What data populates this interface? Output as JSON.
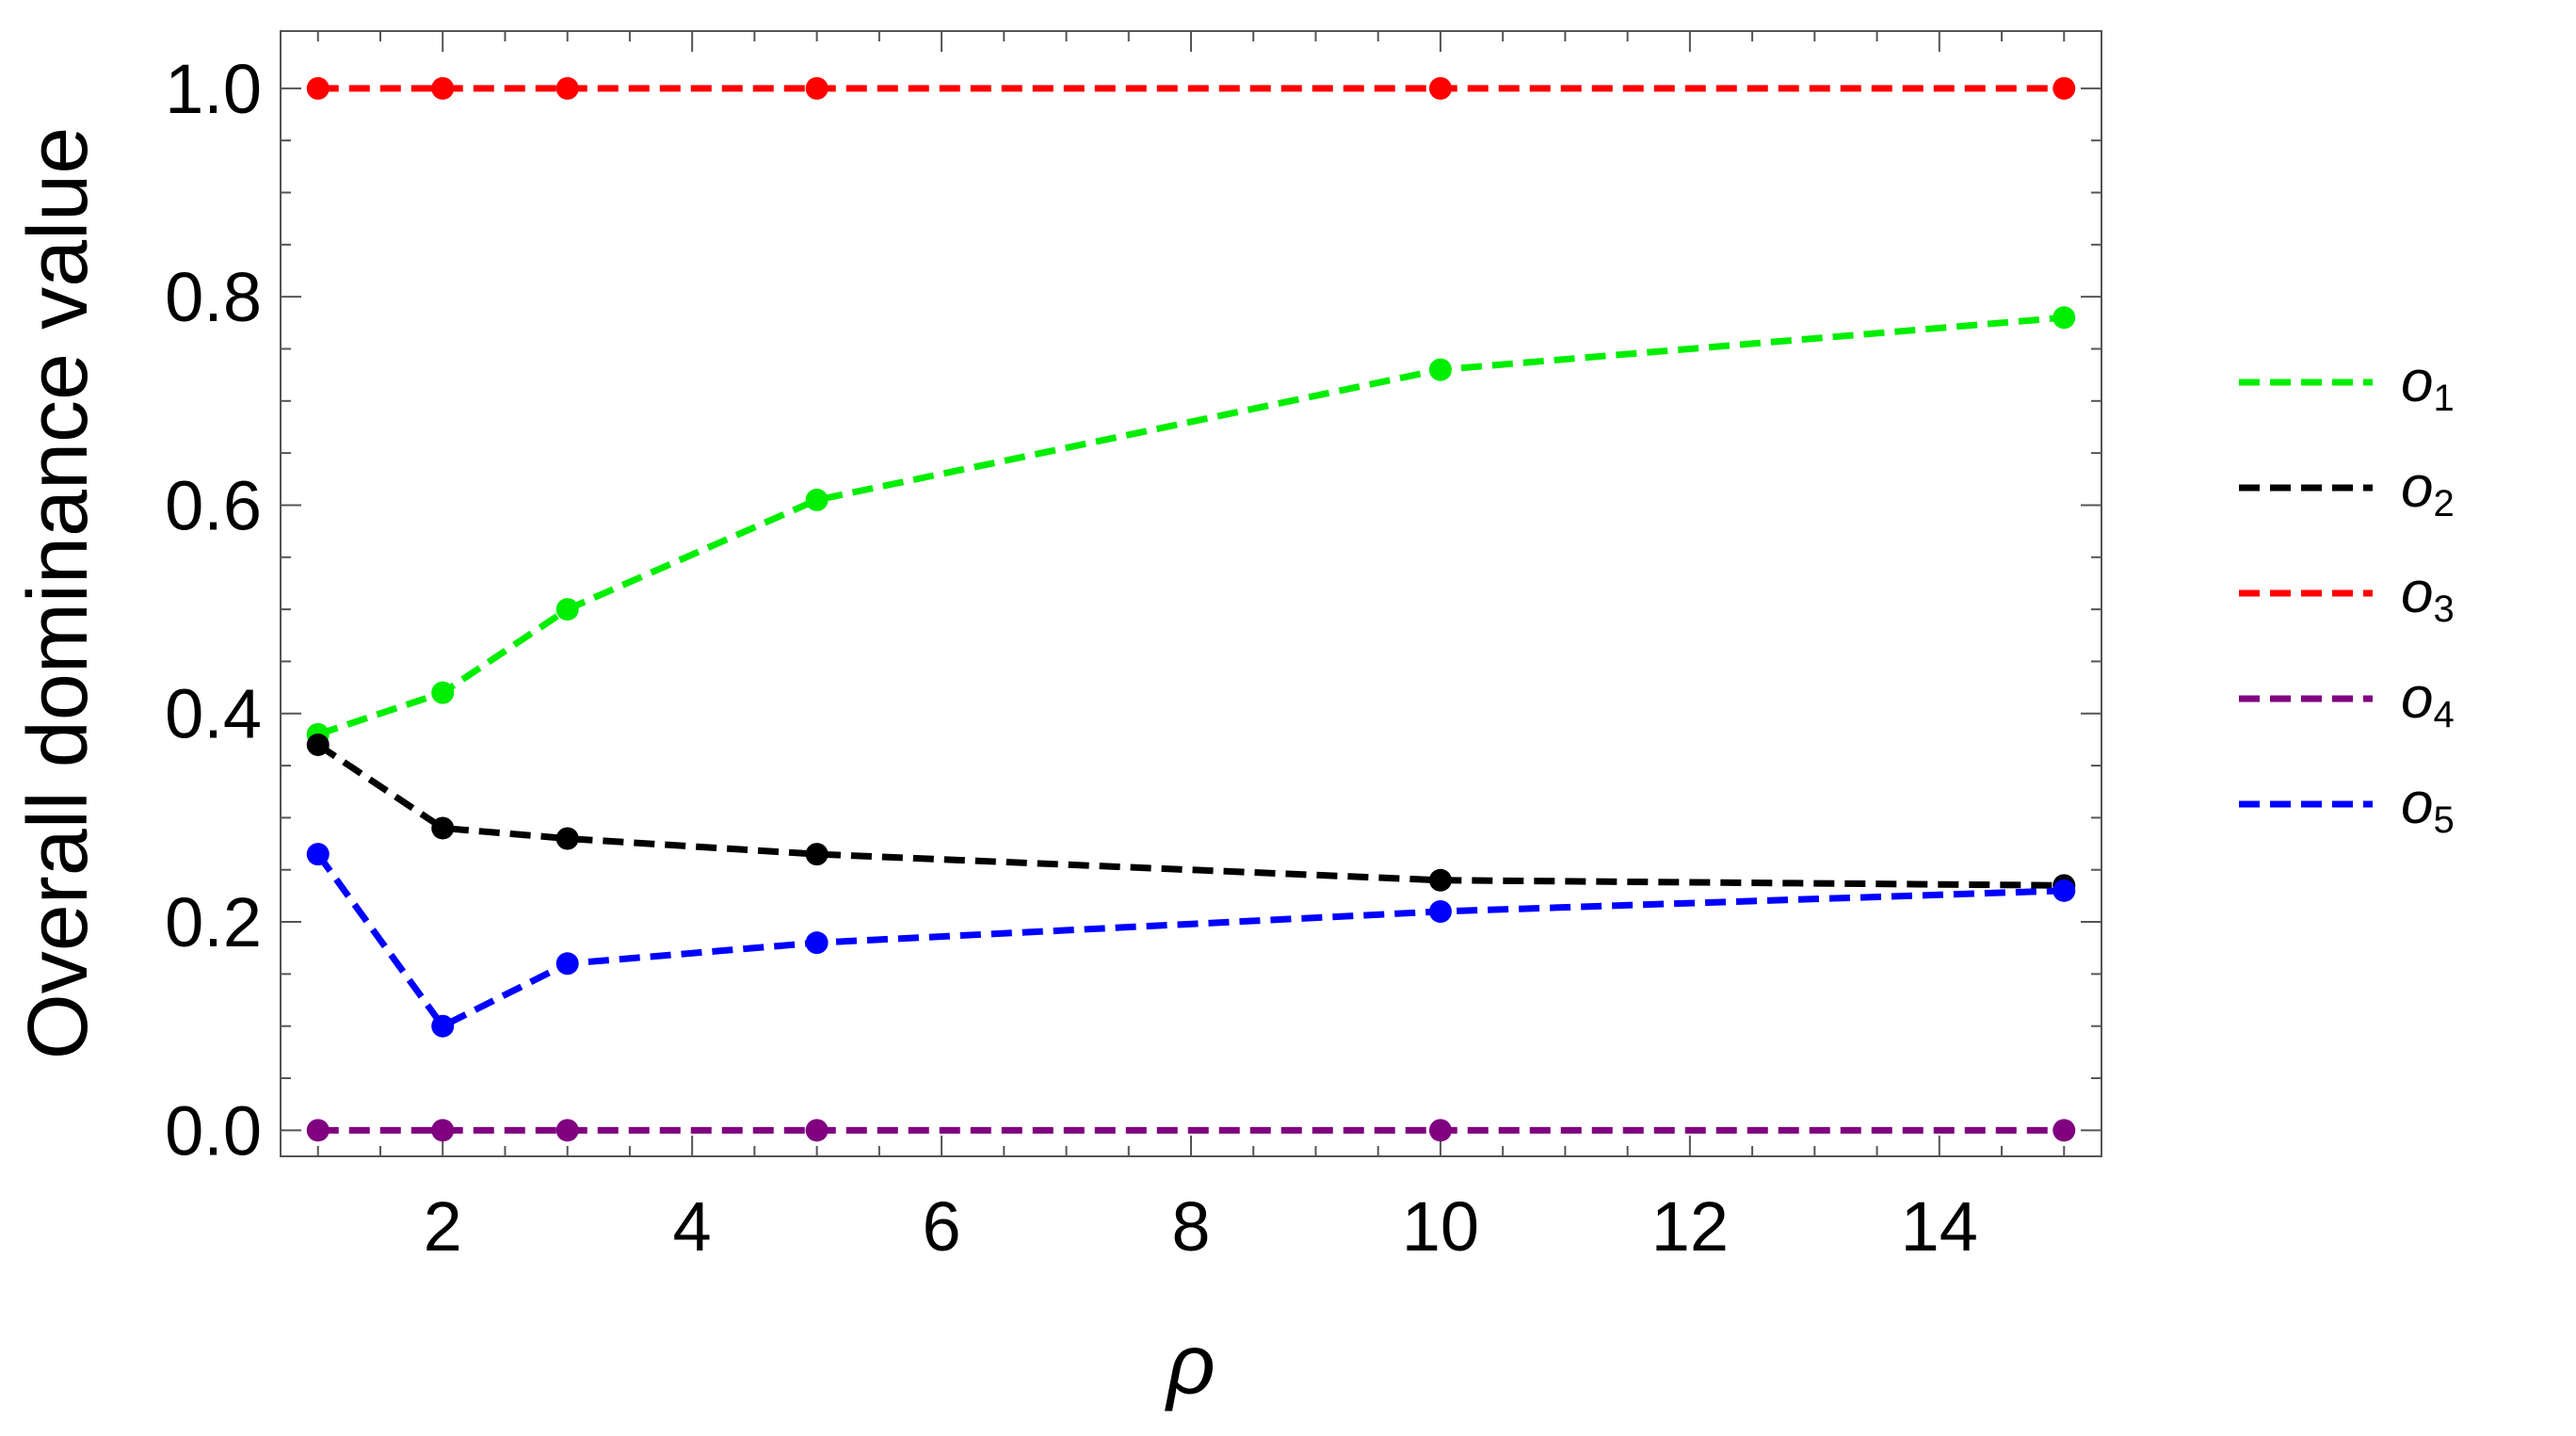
{
  "chart_data": {
    "type": "line",
    "title": "",
    "xlabel": "ρ",
    "ylabel": "Overall dominance value",
    "xlim": [
      0.7,
      15.3
    ],
    "ylim": [
      -0.025,
      1.055
    ],
    "x_ticks": [
      2,
      4,
      6,
      8,
      10,
      12,
      14
    ],
    "x_tick_labels": [
      "2",
      "4",
      "6",
      "8",
      "10",
      "12",
      "14"
    ],
    "y_ticks": [
      0.0,
      0.2,
      0.4,
      0.6,
      0.8,
      1.0
    ],
    "y_tick_labels": [
      "0.0",
      "0.2",
      "0.4",
      "0.6",
      "0.8",
      "1.0"
    ],
    "grid": false,
    "legend_position": "right",
    "line_style": "dashed",
    "markers": "filled-circle",
    "x": [
      1,
      2,
      3,
      5,
      10,
      15
    ],
    "series": [
      {
        "name": "o",
        "subscript": "1",
        "color": "#00ee00",
        "values": [
          0.38,
          0.42,
          0.5,
          0.605,
          0.73,
          0.78
        ]
      },
      {
        "name": "o",
        "subscript": "2",
        "color": "#000000",
        "values": [
          0.37,
          0.29,
          0.28,
          0.265,
          0.24,
          0.235
        ]
      },
      {
        "name": "o",
        "subscript": "3",
        "color": "#ff0000",
        "values": [
          1.0,
          1.0,
          1.0,
          1.0,
          1.0,
          1.0
        ]
      },
      {
        "name": "o",
        "subscript": "4",
        "color": "#800080",
        "values": [
          0.0,
          0.0,
          0.0,
          0.0,
          0.0,
          0.0
        ]
      },
      {
        "name": "o",
        "subscript": "5",
        "color": "#0000ff",
        "values": [
          0.265,
          0.1,
          0.16,
          0.18,
          0.21,
          0.23
        ]
      }
    ]
  }
}
